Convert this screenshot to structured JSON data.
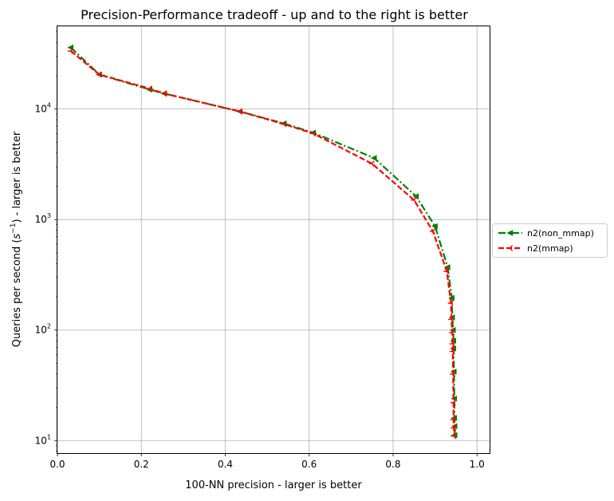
{
  "chart_data": {
    "type": "line",
    "title": "Precision-Performance tradeoff - up and to the right is better",
    "xlabel": "100-NN precision - larger is better",
    "ylabel": {
      "before": "Queries per second (",
      "base": "s",
      "exponent": "−1",
      "after": ") - larger is better"
    },
    "xscale": "linear",
    "yscale": "log",
    "xlim": [
      0.0,
      1.03
    ],
    "ylim": [
      7.7,
      56000
    ],
    "x_ticks": [
      {
        "value": 0.0,
        "label": "0.0"
      },
      {
        "value": 0.2,
        "label": "0.2"
      },
      {
        "value": 0.4,
        "label": "0.4"
      },
      {
        "value": 0.6,
        "label": "0.6"
      },
      {
        "value": 0.8,
        "label": "0.8"
      },
      {
        "value": 1.0,
        "label": "1.0"
      }
    ],
    "y_ticks": [
      {
        "value": 10,
        "base": "10",
        "exponent": "1"
      },
      {
        "value": 100,
        "base": "10",
        "exponent": "2"
      },
      {
        "value": 1000,
        "base": "10",
        "exponent": "3"
      },
      {
        "value": 10000,
        "base": "10",
        "exponent": "4"
      }
    ],
    "grid": true,
    "legend_position": "outside-right",
    "series": [
      {
        "name": "n2(non_mmap)",
        "color": "#008000",
        "linestyle": "dashdot",
        "marker": "triangle-left",
        "points": [
          [
            0.032,
            36000
          ],
          [
            0.1,
            20500
          ],
          [
            0.22,
            15000
          ],
          [
            0.255,
            13800
          ],
          [
            0.435,
            9500
          ],
          [
            0.54,
            7400
          ],
          [
            0.61,
            6100
          ],
          [
            0.755,
            3600
          ],
          [
            0.855,
            1620
          ],
          [
            0.9,
            870
          ],
          [
            0.93,
            370
          ],
          [
            0.94,
            195
          ],
          [
            0.941,
            130
          ],
          [
            0.943,
            100
          ],
          [
            0.944,
            80
          ],
          [
            0.944,
            68
          ],
          [
            0.945,
            42
          ],
          [
            0.946,
            24
          ],
          [
            0.946,
            16
          ],
          [
            0.947,
            13.5
          ],
          [
            0.947,
            11.2
          ]
        ]
      },
      {
        "name": "n2(mmap)",
        "color": "#ff0000",
        "linestyle": "dashed",
        "marker": "tri-left",
        "points": [
          [
            0.032,
            33500
          ],
          [
            0.1,
            20500
          ],
          [
            0.22,
            15300
          ],
          [
            0.255,
            13800
          ],
          [
            0.435,
            9500
          ],
          [
            0.54,
            7300
          ],
          [
            0.61,
            6000
          ],
          [
            0.75,
            3200
          ],
          [
            0.85,
            1500
          ],
          [
            0.895,
            780
          ],
          [
            0.928,
            340
          ],
          [
            0.938,
            175
          ],
          [
            0.939,
            125
          ],
          [
            0.941,
            95
          ],
          [
            0.942,
            75
          ],
          [
            0.942,
            64
          ],
          [
            0.943,
            40
          ],
          [
            0.944,
            22
          ],
          [
            0.944,
            15.5
          ],
          [
            0.945,
            13
          ],
          [
            0.945,
            11
          ]
        ]
      }
    ]
  }
}
